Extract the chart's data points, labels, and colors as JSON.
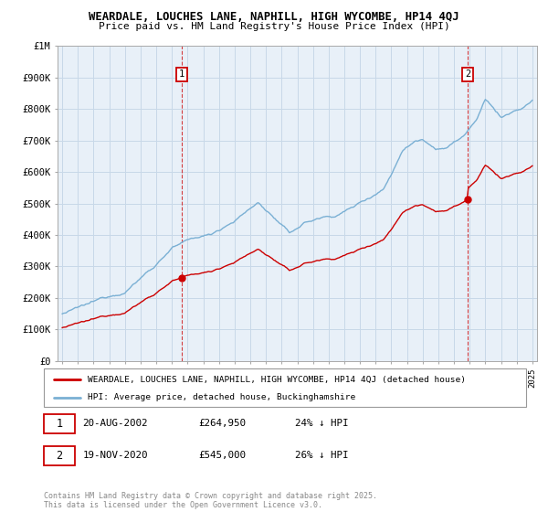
{
  "title1": "WEARDALE, LOUCHES LANE, NAPHILL, HIGH WYCOMBE, HP14 4QJ",
  "title2": "Price paid vs. HM Land Registry's House Price Index (HPI)",
  "property_label": "WEARDALE, LOUCHES LANE, NAPHILL, HIGH WYCOMBE, HP14 4QJ (detached house)",
  "hpi_label": "HPI: Average price, detached house, Buckinghamshire",
  "transaction1_date": "20-AUG-2002",
  "transaction1_price": "£264,950",
  "transaction1_hpi": "24% ↓ HPI",
  "transaction2_date": "19-NOV-2020",
  "transaction2_price": "£545,000",
  "transaction2_hpi": "26% ↓ HPI",
  "footer": "Contains HM Land Registry data © Crown copyright and database right 2025.\nThis data is licensed under the Open Government Licence v3.0.",
  "property_color": "#cc0000",
  "hpi_color": "#7ab0d4",
  "marker1_x_year": 2002.625,
  "marker2_x_year": 2020.875,
  "sale1_price": 264950,
  "sale2_price": 545000,
  "ylim_min": 0,
  "ylim_max": 1000000,
  "xlim_min": 1994.7,
  "xlim_max": 2025.3,
  "chart_bg": "#e8f0f8",
  "grid_color": "#c8d8e8"
}
